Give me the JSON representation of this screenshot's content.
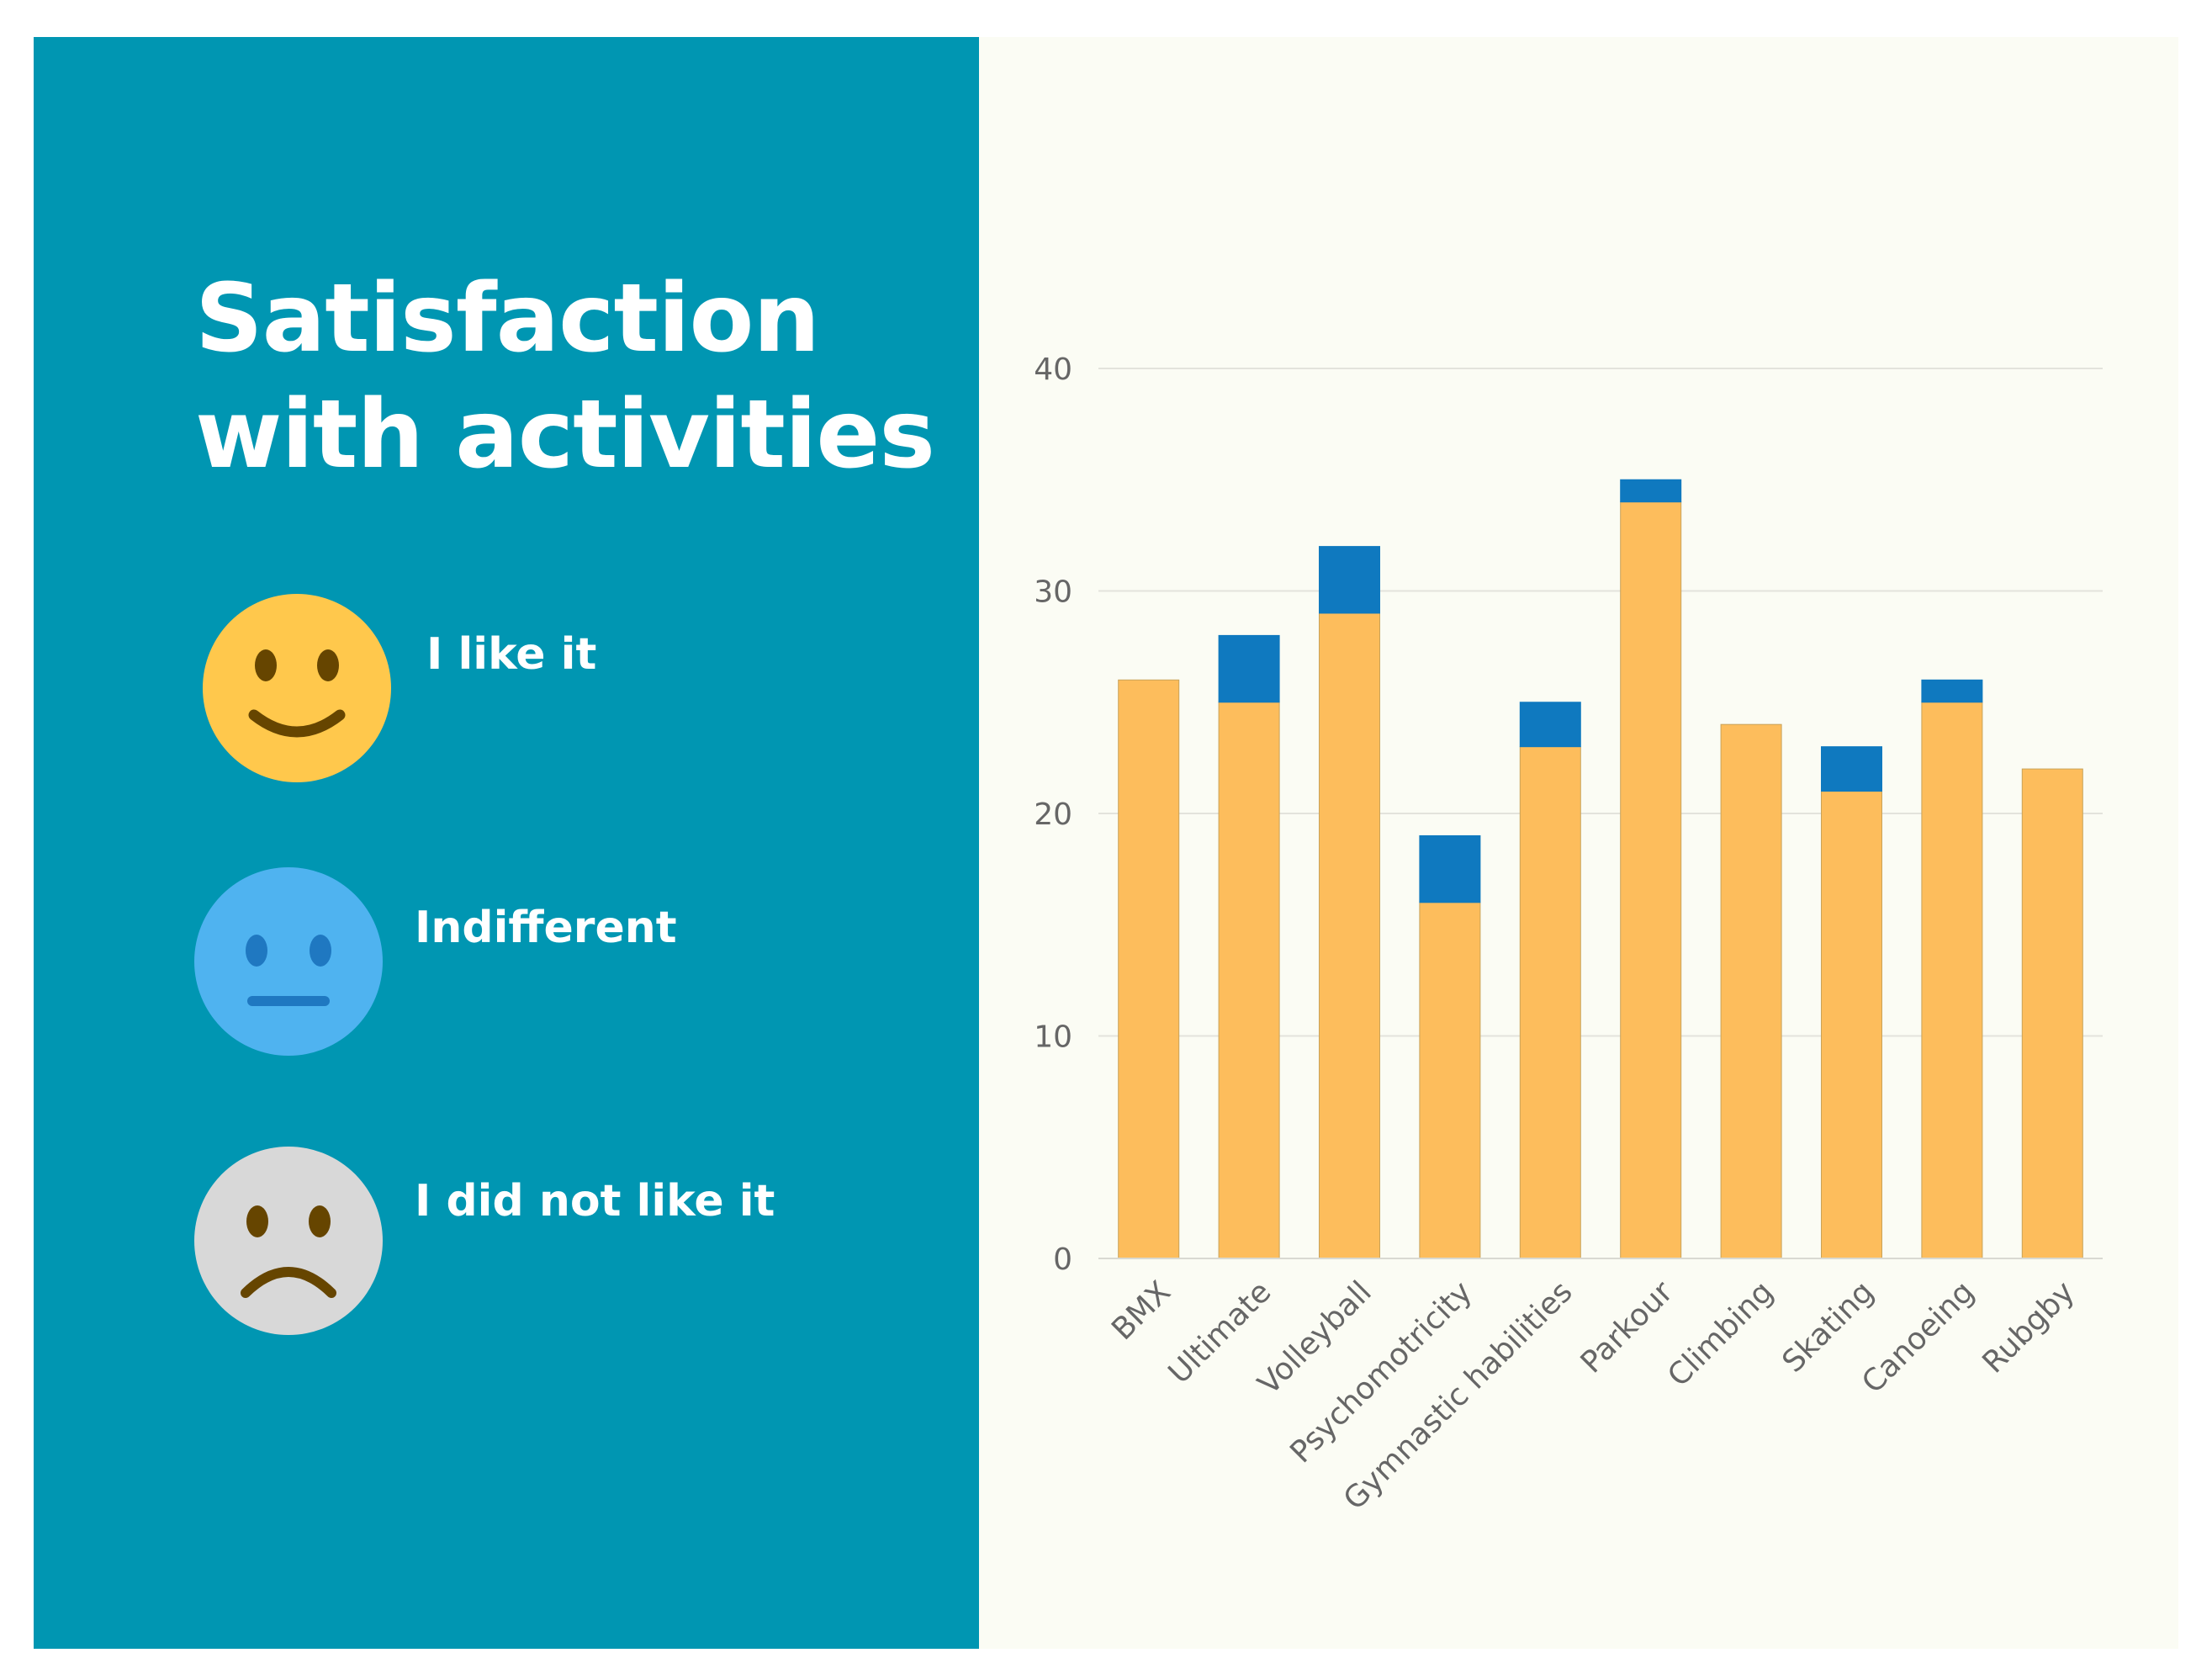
{
  "title": {
    "line1": "Satisfaction",
    "line2": "with activities"
  },
  "legend": [
    {
      "label": "I like it",
      "icon": "happy-face-icon",
      "color": "#ffc84c"
    },
    {
      "label": "Indifferent",
      "icon": "neutral-face-icon",
      "color": "#4fb3f0"
    },
    {
      "label": "I did not like it",
      "icon": "sad-face-icon",
      "color": "#d8d8d8"
    }
  ],
  "colors": {
    "panel": "#0096b2",
    "chart_bg": "#fbfcf4",
    "like": "#fdbd5c",
    "indifferent": "#0f79bf"
  },
  "chart_data": {
    "type": "bar",
    "stacked": true,
    "title": "",
    "xlabel": "",
    "ylabel": "",
    "ylim": [
      0,
      40
    ],
    "yticks": [
      0,
      10,
      20,
      30,
      40
    ],
    "grid": true,
    "categories": [
      "BMX",
      "Ultimate",
      "Volleyball",
      "Psychomotricity",
      "Gymnastic habilities",
      "Parkour",
      "Climbing",
      "Skating",
      "Canoeing",
      "Rubgby"
    ],
    "series": [
      {
        "name": "I like it",
        "color": "#fdbd5c",
        "values": [
          26,
          25,
          29,
          16,
          23,
          34,
          24,
          21,
          25,
          22
        ]
      },
      {
        "name": "Indifferent",
        "color": "#0f79bf",
        "values": [
          0,
          3,
          3,
          3,
          2,
          1,
          0,
          2,
          1,
          0
        ]
      }
    ]
  }
}
